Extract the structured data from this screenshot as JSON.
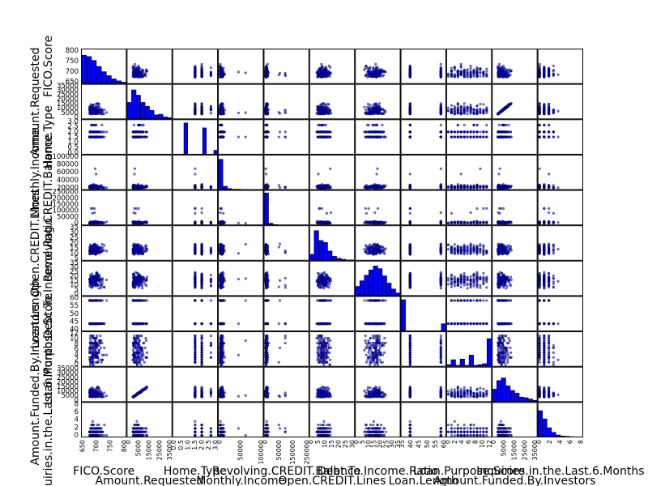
{
  "chart_data": {
    "type": "scatter",
    "layout": "scatter-matrix",
    "colors": {
      "marker": "#0000ff",
      "marker_edge": "#000000",
      "hist": "#0000ff",
      "frame": "#000000"
    },
    "variables": [
      {
        "name": "FICO.Score",
        "range": [
          640,
          840
        ],
        "ticks": [
          "650",
          "700",
          "750",
          "800"
        ],
        "yticks": [
          "650",
          "700",
          "750",
          "800"
        ]
      },
      {
        "name": "Amount.Requested",
        "range": [
          0,
          35000
        ],
        "ticks": [
          "0",
          "5000",
          "15000",
          "25000",
          "35000"
        ],
        "yticks": [
          "0",
          "5000",
          "10000",
          "15000",
          "20000",
          "25000",
          "30000",
          "35000"
        ]
      },
      {
        "name": "Home.Type",
        "range": [
          0,
          3
        ],
        "ticks": [
          "0.0",
          "0.5",
          "1.0",
          "1.5",
          "2.0",
          "2.5",
          "3.0"
        ],
        "yticks": [
          "0.0",
          "0.5",
          "1.0",
          "1.5",
          "2.0",
          "2.5",
          "3.0"
        ]
      },
      {
        "name": "Monthly.Income",
        "range": [
          0,
          110000
        ],
        "ticks": [
          "0",
          "50000",
          "100000"
        ],
        "yticks": [
          "20000",
          "40000",
          "60000",
          "80000",
          "100000"
        ]
      },
      {
        "name": "Revolving.CREDIT.Balance",
        "range": [
          0,
          280000
        ],
        "ticks": [
          "0",
          "50000",
          "150000",
          "250000"
        ],
        "yticks": [
          "0",
          "50000",
          "100000",
          "150000",
          "200000",
          "250000"
        ]
      },
      {
        "name": "Open.CREDIT.Lines",
        "range": [
          0,
          35
        ],
        "ticks": [
          "0",
          "5",
          "10",
          "15",
          "20",
          "25",
          "30"
        ],
        "yticks": [
          "5",
          "10",
          "15",
          "20",
          "25",
          "30",
          "35"
        ]
      },
      {
        "name": "Debt.To.Income.Ratio",
        "range": [
          0,
          35
        ],
        "ticks": [
          "0",
          "5",
          "10",
          "15",
          "20",
          "25",
          "30",
          "35"
        ],
        "yticks": [
          "0",
          "5",
          "10",
          "15",
          "20",
          "25",
          "30",
          "35"
        ]
      },
      {
        "name": "Loan.Length",
        "range": [
          35,
          62
        ],
        "ticks": [
          "35",
          "40",
          "45",
          "50",
          "55",
          "60"
        ],
        "yticks": [
          "40",
          "45",
          "50",
          "55",
          "60"
        ]
      },
      {
        "name": "Loan.Purpose.Score",
        "range": [
          0,
          13
        ],
        "ticks": [
          "0",
          "2",
          "4",
          "6",
          "8",
          "10",
          "12"
        ],
        "yticks": [
          "0",
          "2",
          "4",
          "6",
          "8",
          "10",
          "12"
        ]
      },
      {
        "name": "Amount.Funded.By.Investors",
        "range": [
          0,
          35000
        ],
        "ticks": [
          "0",
          "5000",
          "15000",
          "25000",
          "35000"
        ],
        "yticks": [
          "0",
          "5000",
          "10000",
          "15000",
          "20000",
          "25000",
          "30000",
          "35000"
        ]
      },
      {
        "name": "Inquiries.in.the.Last.6.Months",
        "range": [
          0,
          9
        ],
        "ticks": [
          "0",
          "2",
          "4",
          "6",
          "8"
        ],
        "yticks": [
          "0",
          "2",
          "4",
          "6",
          "8"
        ]
      }
    ],
    "histograms": [
      [
        0.86,
        0.82,
        0.7,
        0.52,
        0.36,
        0.24,
        0.14,
        0.08,
        0.04
      ],
      [
        0.5,
        0.88,
        0.72,
        0.5,
        0.38,
        0.26,
        0.12,
        0.14,
        0.06,
        0.04
      ],
      [
        0,
        0,
        0,
        0.95,
        0,
        0,
        0,
        0,
        0.8,
        0,
        0,
        0.12
      ],
      [
        0.92,
        0.1,
        0.03,
        0.01,
        0.01,
        0,
        0,
        0,
        0,
        0
      ],
      [
        0.97,
        0.05,
        0.01,
        0,
        0,
        0,
        0,
        0,
        0,
        0
      ],
      [
        0.18,
        0.9,
        0.6,
        0.54,
        0.28,
        0.12,
        0.06,
        0.03,
        0.01,
        0.01
      ],
      [
        0.28,
        0.45,
        0.62,
        0.78,
        0.9,
        0.82,
        0.6,
        0.38,
        0.2,
        0.08
      ],
      [
        0.95,
        0,
        0,
        0,
        0,
        0,
        0,
        0,
        0,
        0.22
      ],
      [
        0.05,
        0.2,
        0.03,
        0.22,
        0.03,
        0.34,
        0.03,
        0.05,
        0.08,
        0.84
      ],
      [
        0.38,
        0.64,
        0.72,
        0.48,
        0.34,
        0.26,
        0.14,
        0.12,
        0.08,
        0.04
      ],
      [
        0.8,
        0.55,
        0.28,
        0.14,
        0.06,
        0.03,
        0.02,
        0.01,
        0.005,
        0.005
      ]
    ]
  }
}
